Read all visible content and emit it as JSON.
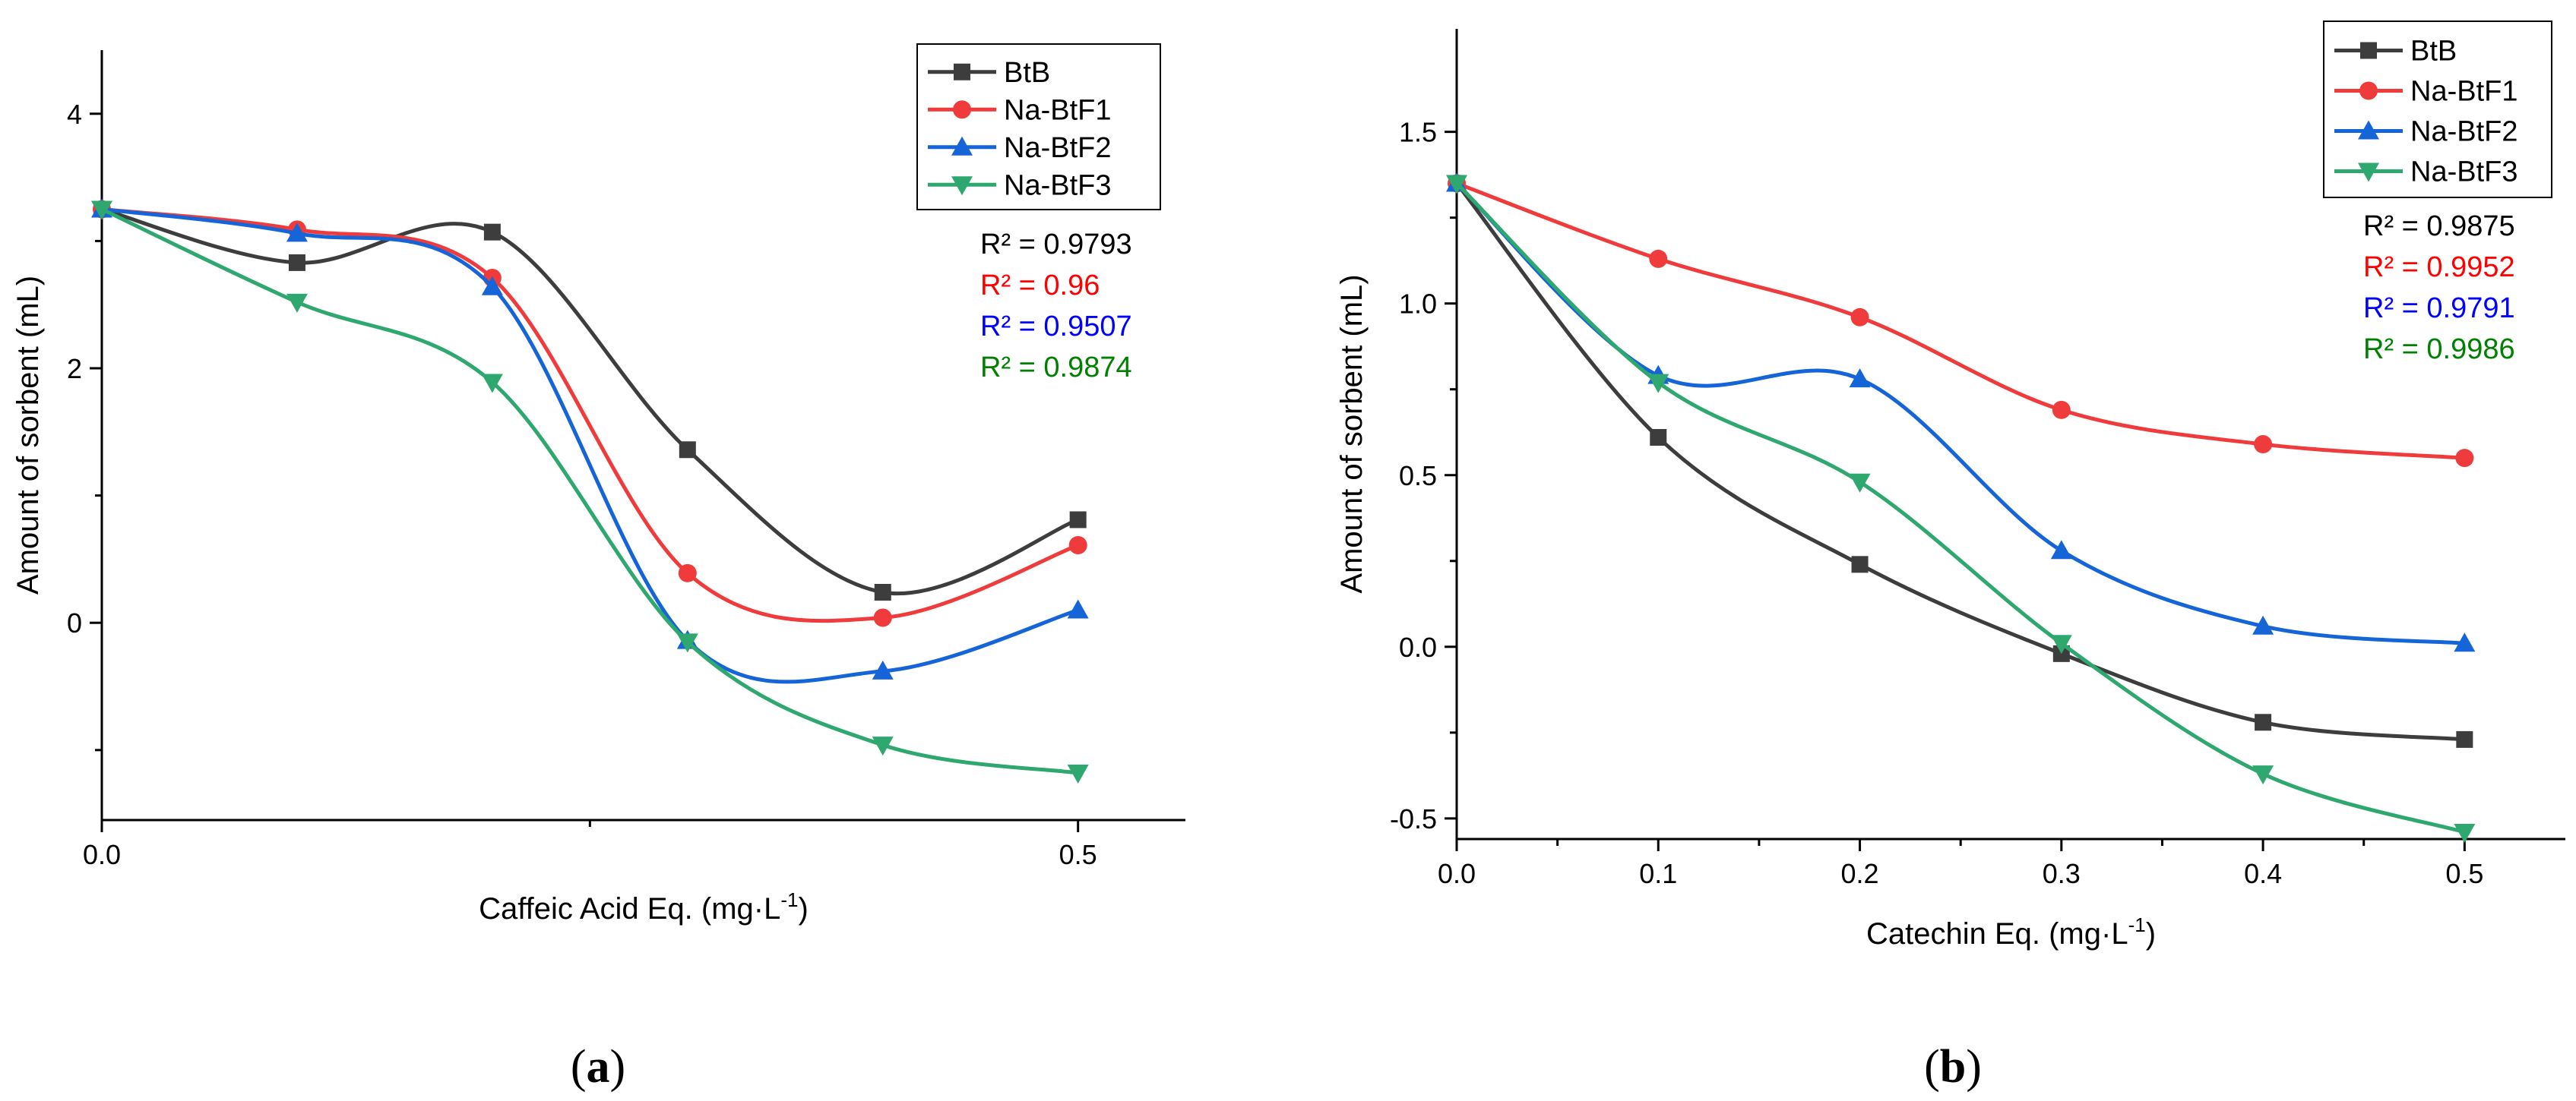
{
  "chart_data": [
    {
      "type": "line",
      "caption": "a",
      "xlabel": "Caffeic Acid Eq. (mg·L",
      "xlabel_sup": "-1",
      "xlabel_close": ")",
      "ylabel": "Amount of sorbent (mL)",
      "xlim": [
        0,
        0.555
      ],
      "ylim": [
        -1.55,
        4.5
      ],
      "x_ticks": [
        0.0,
        0.5
      ],
      "x_tick_labels": [
        "0.0",
        "0.5"
      ],
      "x_minor_ticks": [
        0.25
      ],
      "y_ticks": [
        0,
        2,
        4
      ],
      "y_tick_labels": [
        "0",
        "2",
        "4"
      ],
      "y_minor_ticks": [
        -1,
        1,
        3
      ],
      "x": [
        0.0,
        0.1,
        0.2,
        0.3,
        0.4,
        0.5
      ],
      "series": [
        {
          "name": "BtB",
          "color": "#3d3d3d",
          "marker": "square",
          "values": [
            3.25,
            2.83,
            3.07,
            1.36,
            0.24,
            0.81
          ]
        },
        {
          "name": "Na-BtF1",
          "color": "#ef3b3b",
          "marker": "circle",
          "values": [
            3.25,
            3.09,
            2.71,
            0.39,
            0.04,
            0.61
          ]
        },
        {
          "name": "Na-BtF2",
          "color": "#1565d8",
          "marker": "triangle-up",
          "values": [
            3.25,
            3.06,
            2.64,
            -0.14,
            -0.38,
            0.1
          ]
        },
        {
          "name": "Na-BtF3",
          "color": "#2ea86e",
          "marker": "triangle-down",
          "values": [
            3.25,
            2.52,
            1.89,
            -0.15,
            -0.96,
            -1.18
          ]
        }
      ],
      "r2": [
        {
          "text": "R² = 0.9793",
          "color": "#000000"
        },
        {
          "text": "R² = 0.96",
          "color": "#ff0000"
        },
        {
          "text": "R² = 0.9507",
          "color": "#0000ff"
        },
        {
          "text": "R² = 0.9874",
          "color": "#008000"
        }
      ]
    },
    {
      "type": "line",
      "caption": "b",
      "xlabel": "Catechin Eq. (mg·L",
      "xlabel_sup": "-1",
      "xlabel_close": ")",
      "ylabel": "Amount of sorbent (mL)",
      "xlim": [
        0,
        0.55
      ],
      "ylim": [
        -0.56,
        1.8
      ],
      "x_ticks": [
        0.0,
        0.1,
        0.2,
        0.3,
        0.4,
        0.5
      ],
      "x_tick_labels": [
        "0.0",
        "0.1",
        "0.2",
        "0.3",
        "0.4",
        "0.5"
      ],
      "x_minor_ticks": [
        0.05,
        0.15,
        0.25,
        0.35,
        0.45
      ],
      "y_ticks": [
        -0.5,
        0.0,
        0.5,
        1.0,
        1.5
      ],
      "y_tick_labels": [
        "-0.5",
        "0.0",
        "0.5",
        "1.0",
        "1.5"
      ],
      "y_minor_ticks": [
        -0.25,
        0.25,
        0.75,
        1.25
      ],
      "x": [
        0.0,
        0.1,
        0.2,
        0.3,
        0.4,
        0.5
      ],
      "series": [
        {
          "name": "BtB",
          "color": "#3d3d3d",
          "marker": "square",
          "values": [
            1.35,
            0.61,
            0.24,
            -0.02,
            -0.22,
            -0.27
          ]
        },
        {
          "name": "Na-BtF1",
          "color": "#ef3b3b",
          "marker": "circle",
          "values": [
            1.35,
            1.13,
            0.96,
            0.69,
            0.59,
            0.55
          ]
        },
        {
          "name": "Na-BtF2",
          "color": "#1565d8",
          "marker": "triangle-up",
          "values": [
            1.35,
            0.79,
            0.78,
            0.28,
            0.06,
            0.01
          ]
        },
        {
          "name": "Na-BtF3",
          "color": "#2ea86e",
          "marker": "triangle-down",
          "values": [
            1.35,
            0.77,
            0.48,
            0.01,
            -0.37,
            -0.54
          ]
        }
      ],
      "r2": [
        {
          "text": "R² = 0.9875",
          "color": "#000000"
        },
        {
          "text": "R² = 0.9952",
          "color": "#ff0000"
        },
        {
          "text": "R² = 0.9791",
          "color": "#0000ff"
        },
        {
          "text": "R² = 0.9986",
          "color": "#008000"
        }
      ]
    }
  ]
}
